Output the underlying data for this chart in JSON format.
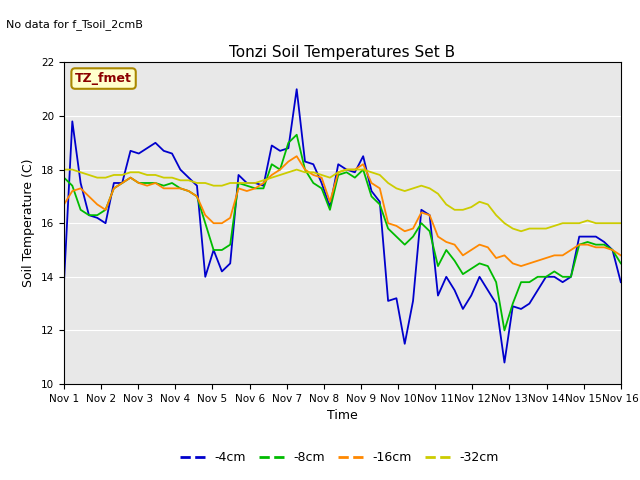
{
  "title": "Tonzi Soil Temperatures Set B",
  "no_data_text": "No data for f_Tsoil_2cmB",
  "legend_label_text": "TZ_fmet",
  "xlabel": "Time",
  "ylabel": "Soil Temperature (C)",
  "xlim": [
    0,
    15
  ],
  "ylim": [
    10,
    22
  ],
  "yticks": [
    10,
    12,
    14,
    16,
    18,
    20,
    22
  ],
  "xtick_labels": [
    "Nov 1",
    "Nov 2",
    "Nov 3",
    "Nov 4",
    "Nov 5",
    "Nov 6",
    "Nov 7",
    "Nov 8",
    "Nov 9",
    "Nov 10",
    "Nov 11",
    "Nov 12",
    "Nov 13",
    "Nov 14",
    "Nov 15",
    "Nov 16"
  ],
  "colors": {
    "4cm": "#0000cc",
    "8cm": "#00bb00",
    "16cm": "#ff8800",
    "32cm": "#cccc00"
  },
  "background_color": "#e8e8e8",
  "t_4cm": [
    13.8,
    19.8,
    17.5,
    16.3,
    16.2,
    16.0,
    17.5,
    17.5,
    18.7,
    18.6,
    18.8,
    19.0,
    18.7,
    18.6,
    18.0,
    17.7,
    17.4,
    14.0,
    15.0,
    14.2,
    14.5,
    17.8,
    17.5,
    17.5,
    17.4,
    18.9,
    18.7,
    18.8,
    21.0,
    18.3,
    18.2,
    17.5,
    16.6,
    18.2,
    18.0,
    17.9,
    18.5,
    17.2,
    16.8,
    13.1,
    13.2,
    11.5,
    13.1,
    16.5,
    16.3,
    13.3,
    14.0,
    13.5,
    12.8,
    13.3,
    14.0,
    13.5,
    13.0,
    10.8,
    12.9,
    12.8,
    13.0,
    13.5,
    14.0,
    14.0,
    13.8,
    14.0,
    15.5,
    15.5,
    15.5,
    15.3,
    15.0,
    13.8
  ],
  "t_8cm": [
    17.7,
    17.4,
    16.5,
    16.3,
    16.3,
    16.5,
    17.3,
    17.5,
    17.7,
    17.5,
    17.5,
    17.5,
    17.4,
    17.5,
    17.3,
    17.2,
    17.0,
    16.0,
    15.0,
    15.0,
    15.2,
    17.5,
    17.4,
    17.3,
    17.3,
    18.2,
    18.0,
    19.0,
    19.3,
    18.0,
    17.5,
    17.3,
    16.5,
    17.8,
    17.9,
    17.7,
    18.0,
    17.0,
    16.7,
    15.8,
    15.5,
    15.2,
    15.5,
    16.0,
    15.7,
    14.4,
    15.0,
    14.6,
    14.1,
    14.3,
    14.5,
    14.4,
    13.8,
    12.0,
    13.0,
    13.8,
    13.8,
    14.0,
    14.0,
    14.2,
    14.0,
    14.0,
    15.2,
    15.3,
    15.2,
    15.2,
    15.0,
    14.5
  ],
  "t_16cm": [
    16.7,
    17.2,
    17.3,
    17.0,
    16.7,
    16.5,
    17.3,
    17.5,
    17.7,
    17.5,
    17.4,
    17.5,
    17.3,
    17.3,
    17.3,
    17.2,
    17.0,
    16.3,
    16.0,
    16.0,
    16.2,
    17.3,
    17.2,
    17.3,
    17.5,
    17.8,
    18.0,
    18.3,
    18.5,
    18.0,
    17.8,
    17.7,
    16.8,
    17.9,
    18.0,
    18.0,
    18.2,
    17.5,
    17.3,
    16.0,
    15.9,
    15.7,
    15.8,
    16.4,
    16.3,
    15.5,
    15.3,
    15.2,
    14.8,
    15.0,
    15.2,
    15.1,
    14.7,
    14.8,
    14.5,
    14.4,
    14.5,
    14.6,
    14.7,
    14.8,
    14.8,
    15.0,
    15.2,
    15.2,
    15.1,
    15.1,
    15.0,
    14.8
  ],
  "t_32cm": [
    18.0,
    18.0,
    17.9,
    17.8,
    17.7,
    17.7,
    17.8,
    17.8,
    17.9,
    17.9,
    17.8,
    17.8,
    17.7,
    17.7,
    17.6,
    17.6,
    17.5,
    17.5,
    17.4,
    17.4,
    17.5,
    17.5,
    17.5,
    17.5,
    17.6,
    17.7,
    17.8,
    17.9,
    18.0,
    17.9,
    17.9,
    17.8,
    17.7,
    17.9,
    18.0,
    18.0,
    18.0,
    17.9,
    17.8,
    17.5,
    17.3,
    17.2,
    17.3,
    17.4,
    17.3,
    17.1,
    16.7,
    16.5,
    16.5,
    16.6,
    16.8,
    16.7,
    16.3,
    16.0,
    15.8,
    15.7,
    15.8,
    15.8,
    15.8,
    15.9,
    16.0,
    16.0,
    16.0,
    16.1,
    16.0,
    16.0,
    16.0,
    16.0
  ]
}
